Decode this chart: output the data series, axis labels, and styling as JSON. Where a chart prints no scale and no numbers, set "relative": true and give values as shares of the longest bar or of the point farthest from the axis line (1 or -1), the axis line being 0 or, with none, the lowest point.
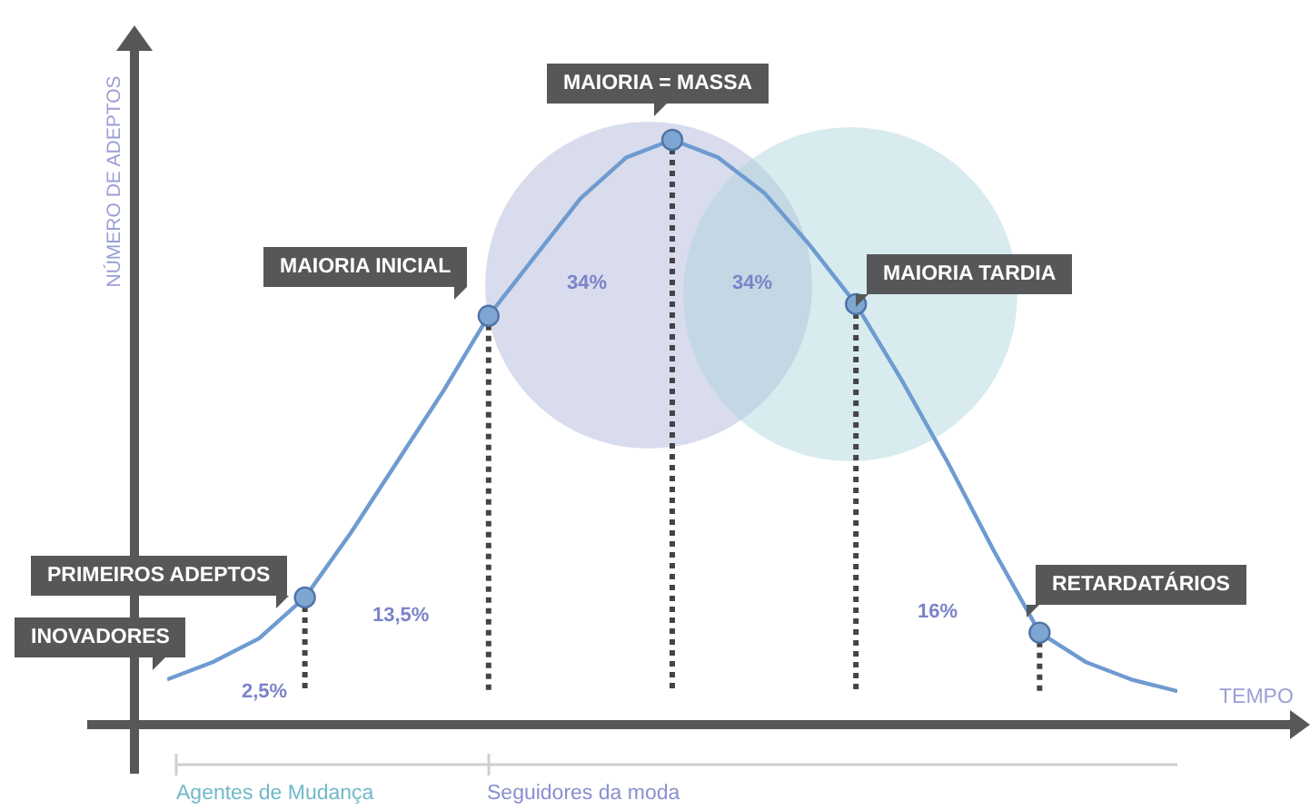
{
  "chart_data": {
    "type": "line",
    "relative": true,
    "xlabel": "TEMPO",
    "ylabel": "NÚMERO DE ADEPTOS",
    "categories": [
      null,
      null,
      null,
      null,
      null,
      null,
      null,
      null,
      null,
      null,
      null,
      null,
      null,
      null,
      null,
      null,
      null,
      null,
      null,
      null,
      null,
      null,
      null
    ],
    "series": [
      {
        "color": "#6e9bd0",
        "values": [
          0.08,
          0.11,
          0.15,
          0.22,
          0.33,
          0.45,
          0.57,
          0.7,
          0.8,
          0.9,
          0.97,
          1.0,
          0.97,
          0.91,
          0.82,
          0.72,
          0.59,
          0.45,
          0.3,
          0.16,
          0.11,
          0.08,
          0.06
        ]
      }
    ],
    "annotations": [
      "INOVADORES",
      "PRIMEIROS ADEPTOS",
      "MAIORIA INICIAL",
      "MAIORIA = MASSA",
      "MAIORIA TARDIA",
      "RETARDATÁRIOS",
      "2,5%",
      "13,5%",
      "34%",
      "34%",
      "16%",
      "Agentes de Mudança",
      "Seguidores da moda"
    ],
    "grid": false
  }
}
